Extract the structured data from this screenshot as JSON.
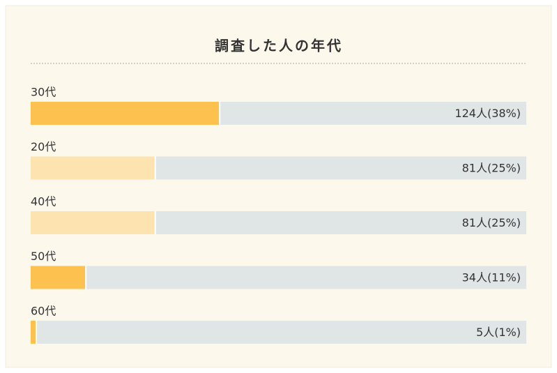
{
  "chart_data": {
    "type": "bar",
    "orientation": "horizontal",
    "title": "調査した人の年代",
    "categories": [
      "30代",
      "20代",
      "40代",
      "50代",
      "60代"
    ],
    "values": [
      38,
      25,
      25,
      11,
      1
    ],
    "value_labels": [
      "124人(38%)",
      "81人(25%)",
      "81人(25%)",
      "34人(11%)",
      "5人(1%)"
    ],
    "colors": [
      "#fdc150",
      "#fde3b0",
      "#fde3b0",
      "#fdc150",
      "#fdc150"
    ],
    "track_color": "#e0e5e6",
    "xlim": [
      0,
      100
    ]
  }
}
